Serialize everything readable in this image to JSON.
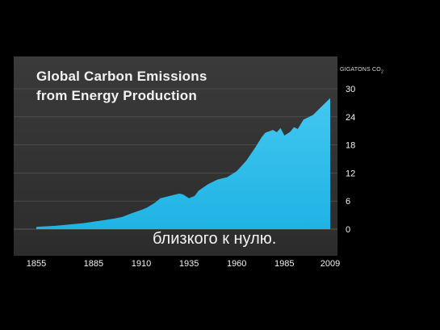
{
  "colors": {
    "area": "#1fb3e4",
    "area_top": "#43c7f0",
    "text": "#f2f2f2",
    "grid": "#5a5a5a",
    "panel": "#333333",
    "background": "#000000"
  },
  "subtitle_caption": "близкого к нулю.",
  "chart_data": {
    "type": "area",
    "title_line1": "Global Carbon Emissions",
    "title_line2": "from Energy Production",
    "unit_label": "GIGATONS CO",
    "unit_sub": "2",
    "xlim": [
      1855,
      2009
    ],
    "ylim": [
      0,
      30
    ],
    "y_ticks": [
      0,
      6,
      12,
      18,
      24,
      30
    ],
    "x_ticks": [
      1855,
      1885,
      1910,
      1935,
      1960,
      1985,
      2009
    ],
    "grid": true,
    "series": [
      {
        "x": [
          1855,
          1860,
          1865,
          1870,
          1875,
          1880,
          1885,
          1890,
          1895,
          1900,
          1905,
          1910,
          1913,
          1917,
          1920,
          1925,
          1930,
          1932,
          1935,
          1938,
          1940,
          1945,
          1950,
          1955,
          1960,
          1965,
          1970,
          1973,
          1975,
          1979,
          1981,
          1983,
          1985,
          1988,
          1990,
          1992,
          1995,
          2000,
          2005,
          2009
        ],
        "values": [
          0.5,
          0.6,
          0.7,
          0.9,
          1.1,
          1.3,
          1.6,
          1.9,
          2.2,
          2.6,
          3.4,
          4.1,
          4.6,
          5.6,
          6.6,
          7.1,
          7.6,
          7.4,
          6.6,
          7.1,
          8.2,
          9.6,
          10.6,
          11.1,
          12.4,
          14.6,
          17.6,
          19.6,
          20.6,
          21.2,
          20.7,
          21.6,
          20.0,
          20.8,
          21.8,
          21.4,
          23.4,
          24.4,
          26.4,
          28.0
        ]
      }
    ]
  }
}
